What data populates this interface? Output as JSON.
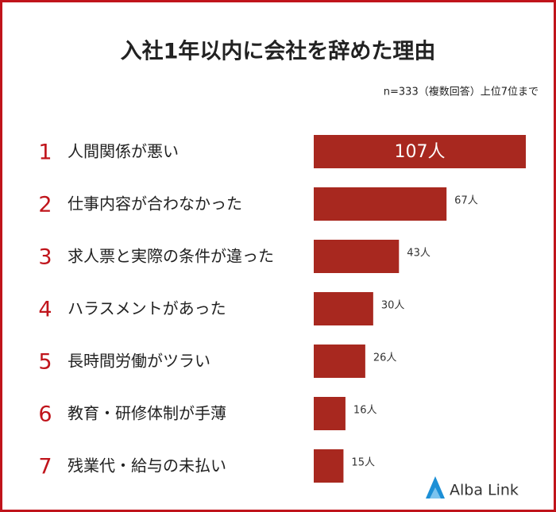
{
  "chart_data": {
    "type": "bar",
    "orientation": "horizontal",
    "title": "入社1年以内に会社を辞めた理由",
    "subtitle": "n=333（複数回答）上位7位まで",
    "ranks": [
      "1",
      "2",
      "3",
      "4",
      "5",
      "6",
      "7"
    ],
    "categories": [
      "人間関係が悪い",
      "仕事内容が合わなかった",
      "求人票と実際の条件が違った",
      "ハラスメントがあった",
      "長時間労働がツラい",
      "教育・研修体制が手薄",
      "残業代・給与の未払い"
    ],
    "values": [
      107,
      67,
      43,
      30,
      26,
      16,
      15
    ],
    "value_labels": [
      "107人",
      "67人",
      "43人",
      "30人",
      "26人",
      "16人",
      "15人"
    ],
    "color": "#a8281f",
    "rank_color": "#c0141b"
  },
  "logo": "Alba Link"
}
